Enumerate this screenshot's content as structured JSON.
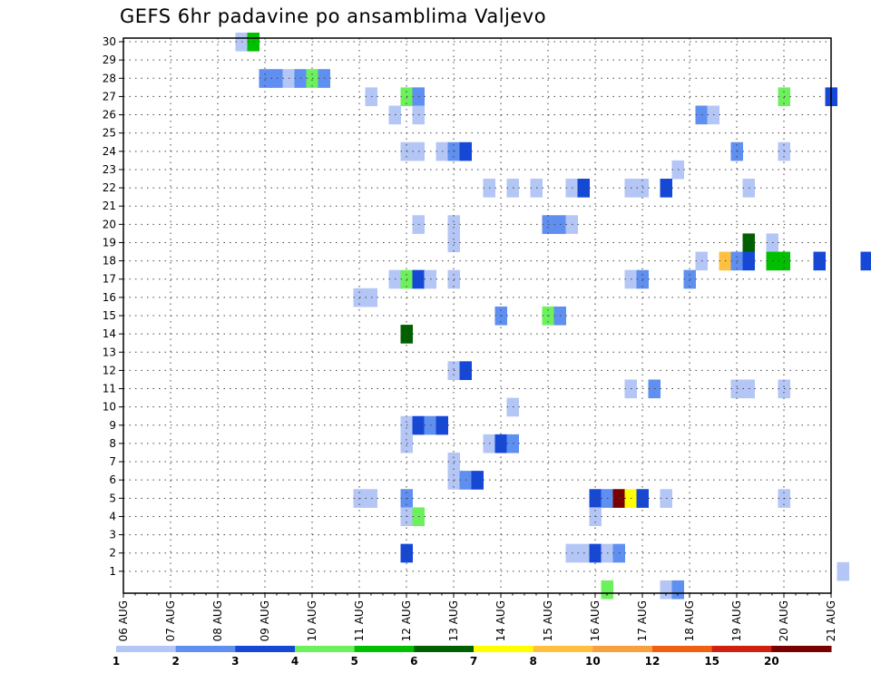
{
  "chart_data": {
    "type": "heatmap",
    "title": "GEFS 6hr padavine po ansamblima Valjevo",
    "y_ticks": [
      "1",
      "2",
      "3",
      "4",
      "5",
      "6",
      "7",
      "8",
      "9",
      "10",
      "11",
      "12",
      "13",
      "14",
      "15",
      "16",
      "17",
      "18",
      "19",
      "20",
      "21",
      "22",
      "23",
      "24",
      "25",
      "26",
      "27",
      "28",
      "29",
      "30"
    ],
    "x_ticks": [
      "06 AUG",
      "07 AUG",
      "08 AUG",
      "09 AUG",
      "10 AUG",
      "11 AUG",
      "12 AUG",
      "13 AUG",
      "14 AUG",
      "15 AUG",
      "16 AUG",
      "17 AUG",
      "18 AUG",
      "19 AUG",
      "20 AUG",
      "21 AUG"
    ],
    "x_step": "6hr",
    "ylim": [
      0,
      30
    ],
    "grid": true,
    "colorbar": {
      "labels": [
        "1",
        "2",
        "3",
        "4",
        "5",
        "6",
        "7",
        "8",
        "10",
        "12",
        "15",
        "20"
      ],
      "colors": [
        "#b4c6f6",
        "#5f8ff0",
        "#1648d8",
        "#6cf05c",
        "#00c000",
        "#006000",
        "#ffff00",
        "#ffc040",
        "#f8a040",
        "#f06010",
        "#d02010",
        "#780000"
      ]
    },
    "cells": [
      {
        "x": 2.5,
        "m": 30,
        "c": 1
      },
      {
        "x": 2.75,
        "m": 30,
        "c": 5
      },
      {
        "x": 3.0,
        "m": 28,
        "c": 2
      },
      {
        "x": 3.25,
        "m": 28,
        "c": 2
      },
      {
        "x": 3.5,
        "m": 28,
        "c": 1
      },
      {
        "x": 3.75,
        "m": 28,
        "c": 2
      },
      {
        "x": 4.0,
        "m": 28,
        "c": 4
      },
      {
        "x": 4.25,
        "m": 28,
        "c": 2
      },
      {
        "x": 5.25,
        "m": 27,
        "c": 1
      },
      {
        "x": 6.0,
        "m": 27,
        "c": 4
      },
      {
        "x": 6.25,
        "m": 27,
        "c": 2
      },
      {
        "x": 14.0,
        "m": 27,
        "c": 4
      },
      {
        "x": 15.0,
        "m": 27,
        "c": 3
      },
      {
        "x": 5.75,
        "m": 26,
        "c": 1
      },
      {
        "x": 6.25,
        "m": 26,
        "c": 1
      },
      {
        "x": 12.25,
        "m": 26,
        "c": 2
      },
      {
        "x": 12.5,
        "m": 26,
        "c": 1
      },
      {
        "x": 6.0,
        "m": 24,
        "c": 1
      },
      {
        "x": 6.25,
        "m": 24,
        "c": 1
      },
      {
        "x": 6.75,
        "m": 24,
        "c": 1
      },
      {
        "x": 7.0,
        "m": 24,
        "c": 2
      },
      {
        "x": 7.25,
        "m": 24,
        "c": 3
      },
      {
        "x": 13.0,
        "m": 24,
        "c": 2
      },
      {
        "x": 14.0,
        "m": 24,
        "c": 1
      },
      {
        "x": 11.75,
        "m": 23,
        "c": 1
      },
      {
        "x": 7.75,
        "m": 22,
        "c": 1
      },
      {
        "x": 8.25,
        "m": 22,
        "c": 1
      },
      {
        "x": 8.75,
        "m": 22,
        "c": 1
      },
      {
        "x": 9.5,
        "m": 22,
        "c": 1
      },
      {
        "x": 9.75,
        "m": 22,
        "c": 3
      },
      {
        "x": 10.75,
        "m": 22,
        "c": 1
      },
      {
        "x": 11.0,
        "m": 22,
        "c": 1
      },
      {
        "x": 11.5,
        "m": 22,
        "c": 3
      },
      {
        "x": 13.25,
        "m": 22,
        "c": 1
      },
      {
        "x": 6.25,
        "m": 20,
        "c": 1
      },
      {
        "x": 7.0,
        "m": 20,
        "c": 1
      },
      {
        "x": 9.0,
        "m": 20,
        "c": 2
      },
      {
        "x": 9.25,
        "m": 20,
        "c": 2
      },
      {
        "x": 9.5,
        "m": 20,
        "c": 1
      },
      {
        "x": 7.0,
        "m": 19,
        "c": 1
      },
      {
        "x": 13.25,
        "m": 19,
        "c": 6
      },
      {
        "x": 13.75,
        "m": 19,
        "c": 1
      },
      {
        "x": 12.25,
        "m": 18,
        "c": 1
      },
      {
        "x": 12.75,
        "m": 18,
        "c": 8
      },
      {
        "x": 13.0,
        "m": 18,
        "c": 2
      },
      {
        "x": 13.25,
        "m": 18,
        "c": 3
      },
      {
        "x": 13.75,
        "m": 18,
        "c": 5
      },
      {
        "x": 14.0,
        "m": 18,
        "c": 5
      },
      {
        "x": 14.75,
        "m": 18,
        "c": 3
      },
      {
        "x": 15.75,
        "m": 18,
        "c": 3
      },
      {
        "x": 5.75,
        "m": 17,
        "c": 1
      },
      {
        "x": 6.0,
        "m": 17,
        "c": 4
      },
      {
        "x": 6.25,
        "m": 17,
        "c": 3
      },
      {
        "x": 6.5,
        "m": 17,
        "c": 1
      },
      {
        "x": 7.0,
        "m": 17,
        "c": 1
      },
      {
        "x": 10.75,
        "m": 17,
        "c": 1
      },
      {
        "x": 11.0,
        "m": 17,
        "c": 2
      },
      {
        "x": 12.0,
        "m": 17,
        "c": 2
      },
      {
        "x": 5.0,
        "m": 16,
        "c": 1
      },
      {
        "x": 5.25,
        "m": 16,
        "c": 1
      },
      {
        "x": 8.0,
        "m": 15,
        "c": 2
      },
      {
        "x": 9.0,
        "m": 15,
        "c": 4
      },
      {
        "x": 9.25,
        "m": 15,
        "c": 2
      },
      {
        "x": 6.0,
        "m": 14,
        "c": 6
      },
      {
        "x": 7.0,
        "m": 12,
        "c": 1
      },
      {
        "x": 7.25,
        "m": 12,
        "c": 3
      },
      {
        "x": 10.75,
        "m": 11,
        "c": 1
      },
      {
        "x": 11.25,
        "m": 11,
        "c": 2
      },
      {
        "x": 13.0,
        "m": 11,
        "c": 1
      },
      {
        "x": 13.25,
        "m": 11,
        "c": 1
      },
      {
        "x": 14.0,
        "m": 11,
        "c": 1
      },
      {
        "x": 8.25,
        "m": 10,
        "c": 1
      },
      {
        "x": 6.0,
        "m": 9,
        "c": 1
      },
      {
        "x": 6.25,
        "m": 9,
        "c": 3
      },
      {
        "x": 6.5,
        "m": 9,
        "c": 2
      },
      {
        "x": 6.75,
        "m": 9,
        "c": 3
      },
      {
        "x": 6.0,
        "m": 8,
        "c": 1
      },
      {
        "x": 7.75,
        "m": 8,
        "c": 1
      },
      {
        "x": 8.0,
        "m": 8,
        "c": 3
      },
      {
        "x": 8.25,
        "m": 8,
        "c": 2
      },
      {
        "x": 7.0,
        "m": 7,
        "c": 1
      },
      {
        "x": 7.0,
        "m": 6,
        "c": 1
      },
      {
        "x": 7.25,
        "m": 6,
        "c": 2
      },
      {
        "x": 7.5,
        "m": 6,
        "c": 3
      },
      {
        "x": 5.0,
        "m": 5,
        "c": 1
      },
      {
        "x": 5.25,
        "m": 5,
        "c": 1
      },
      {
        "x": 6.0,
        "m": 5,
        "c": 2
      },
      {
        "x": 10.0,
        "m": 5,
        "c": 3
      },
      {
        "x": 10.25,
        "m": 5,
        "c": 2
      },
      {
        "x": 10.5,
        "m": 5,
        "c": 12
      },
      {
        "x": 10.75,
        "m": 5,
        "c": 7
      },
      {
        "x": 11.0,
        "m": 5,
        "c": 3
      },
      {
        "x": 11.5,
        "m": 5,
        "c": 1
      },
      {
        "x": 14.0,
        "m": 5,
        "c": 1
      },
      {
        "x": 6.0,
        "m": 4,
        "c": 1
      },
      {
        "x": 6.25,
        "m": 4,
        "c": 4
      },
      {
        "x": 10.0,
        "m": 4,
        "c": 1
      },
      {
        "x": 6.0,
        "m": 2,
        "c": 3
      },
      {
        "x": 9.5,
        "m": 2,
        "c": 1
      },
      {
        "x": 9.75,
        "m": 2,
        "c": 1
      },
      {
        "x": 10.0,
        "m": 2,
        "c": 3
      },
      {
        "x": 10.25,
        "m": 2,
        "c": 1
      },
      {
        "x": 10.5,
        "m": 2,
        "c": 2
      },
      {
        "x": 15.25,
        "m": 1,
        "c": 1
      },
      {
        "x": 10.25,
        "m": 0,
        "c": 4
      },
      {
        "x": 11.5,
        "m": 0,
        "c": 1
      },
      {
        "x": 11.75,
        "m": 0,
        "c": 2
      }
    ]
  }
}
